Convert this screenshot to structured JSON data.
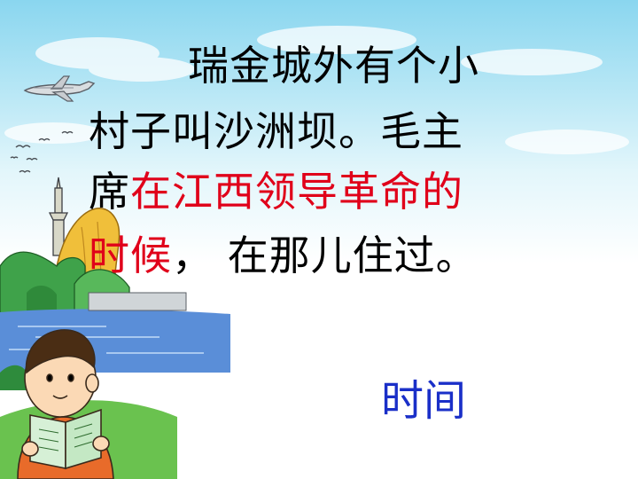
{
  "slide": {
    "lines": [
      {
        "text": "瑞金城外有个小"
      },
      {
        "text": "村子叫沙洲坝。毛主"
      },
      {
        "prefix": "席",
        "highlight": "在江西领导革命的"
      },
      {
        "highlight": "时候",
        "suffix": "，  在那儿住过。"
      }
    ],
    "vocab_word": "时间"
  },
  "colors": {
    "text": "#000000",
    "highlight": "#e0001a",
    "vocab": "#1a2fc8",
    "sky_top": "#8ad6ef"
  },
  "illustrations": [
    "airplane",
    "flying-birds",
    "tower-pagoda",
    "yellow-cliff",
    "green-hills",
    "river",
    "boy-reading-book"
  ]
}
